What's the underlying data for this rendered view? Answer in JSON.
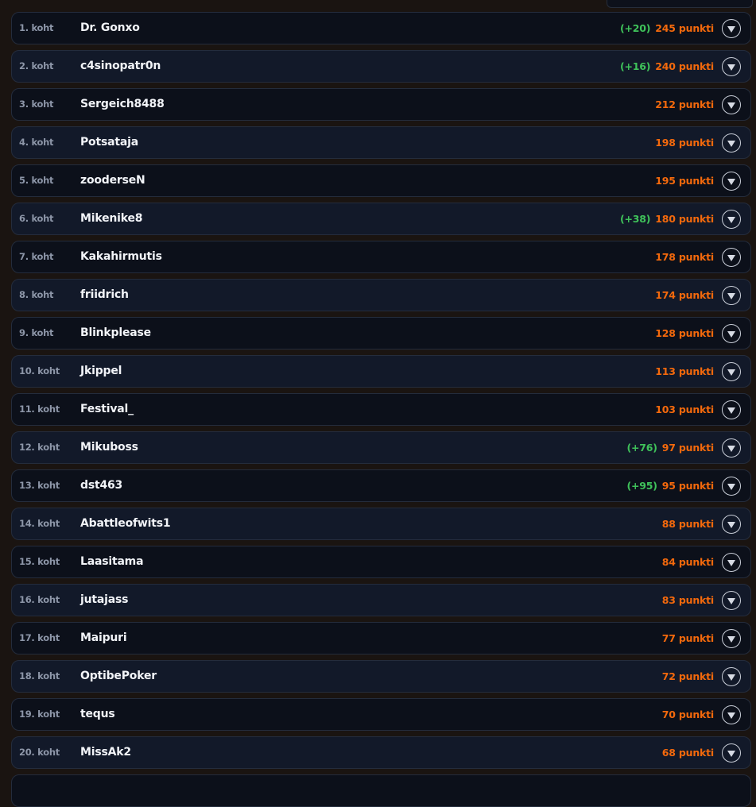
{
  "rank_suffix": "koht",
  "points_suffix": "punkti",
  "colors": {
    "points": "#f4690c",
    "delta": "#3fc25a",
    "name": "#f2f4f8",
    "rank": "#8d96a8"
  },
  "toggle_icon": "chevron-down-circle-icon",
  "leaderboard": [
    {
      "rank": "1. koht",
      "name": "Dr. Gonxo",
      "delta": "(+20)",
      "points": "245 punkti"
    },
    {
      "rank": "2. koht",
      "name": "c4sinopatr0n",
      "delta": "(+16)",
      "points": "240 punkti"
    },
    {
      "rank": "3. koht",
      "name": "Sergeich8488",
      "delta": "",
      "points": "212 punkti"
    },
    {
      "rank": "4. koht",
      "name": "Potsataja",
      "delta": "",
      "points": "198 punkti"
    },
    {
      "rank": "5. koht",
      "name": "zooderseN",
      "delta": "",
      "points": "195 punkti"
    },
    {
      "rank": "6. koht",
      "name": "Mikenike8",
      "delta": "(+38)",
      "points": "180 punkti"
    },
    {
      "rank": "7. koht",
      "name": "Kakahirmutis",
      "delta": "",
      "points": "178 punkti"
    },
    {
      "rank": "8. koht",
      "name": "friidrich",
      "delta": "",
      "points": "174 punkti"
    },
    {
      "rank": "9. koht",
      "name": "Blinkplease",
      "delta": "",
      "points": "128 punkti"
    },
    {
      "rank": "10. koht",
      "name": "Jkippel",
      "delta": "",
      "points": "113 punkti"
    },
    {
      "rank": "11. koht",
      "name": "Festival_",
      "delta": "",
      "points": "103 punkti"
    },
    {
      "rank": "12. koht",
      "name": "Mikuboss",
      "delta": "(+76)",
      "points": "97 punkti"
    },
    {
      "rank": "13. koht",
      "name": "dst463",
      "delta": "(+95)",
      "points": "95 punkti"
    },
    {
      "rank": "14. koht",
      "name": "Abattleofwits1",
      "delta": "",
      "points": "88 punkti"
    },
    {
      "rank": "15. koht",
      "name": "Laasitama",
      "delta": "",
      "points": "84 punkti"
    },
    {
      "rank": "16. koht",
      "name": "jutajass",
      "delta": "",
      "points": "83 punkti"
    },
    {
      "rank": "17. koht",
      "name": "Maipuri",
      "delta": "",
      "points": "77 punkti"
    },
    {
      "rank": "18. koht",
      "name": "OptibePoker",
      "delta": "",
      "points": "72 punkti"
    },
    {
      "rank": "19. koht",
      "name": "tequs",
      "delta": "",
      "points": "70 punkti"
    },
    {
      "rank": "20. koht",
      "name": "MissAk2",
      "delta": "",
      "points": "68 punkti"
    }
  ]
}
